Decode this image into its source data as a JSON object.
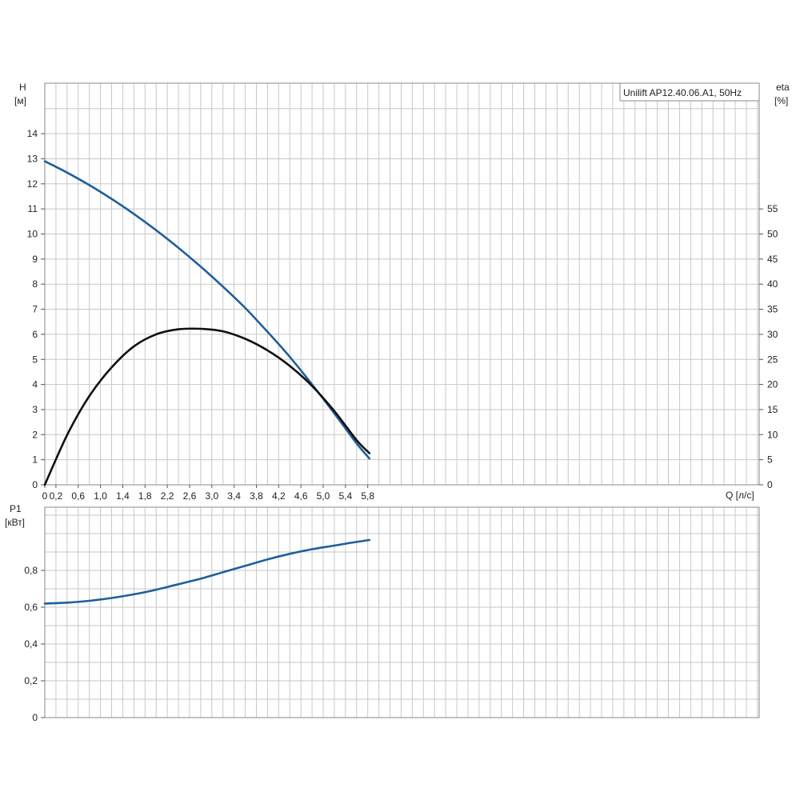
{
  "chart_data": [
    {
      "type": "line",
      "title": "Unilift AP12.40.06.A1, 50Hz",
      "xlabel": "Q [л/с]",
      "x_unit_label": "Q [л/с]",
      "ylabel": "H",
      "y_unit": "[м]",
      "y2label": "eta",
      "y2_unit": "[%]",
      "xlim": [
        0,
        6.4
      ],
      "ylim": [
        0,
        16
      ],
      "y2lim": [
        0,
        80
      ],
      "grid": true,
      "x_ticks": [
        "0",
        "0,2",
        "0,6",
        "1,0",
        "1,4",
        "1,8",
        "2,2",
        "2,6",
        "3,0",
        "3,4",
        "3,8",
        "4,2",
        "4,6",
        "5,0",
        "5,4",
        "5,8"
      ],
      "y_ticks": [
        "0",
        "1",
        "2",
        "3",
        "4",
        "5",
        "6",
        "7",
        "8",
        "9",
        "10",
        "11",
        "12",
        "13",
        "14"
      ],
      "y2_ticks": [
        "0",
        "5",
        "10",
        "15",
        "20",
        "25",
        "30",
        "35",
        "40",
        "45",
        "50",
        "55"
      ],
      "series": [
        {
          "axis": "left",
          "color": "#1f5f9a",
          "x": [
            0,
            0.4,
            0.8,
            1.2,
            1.6,
            2.0,
            2.4,
            2.8,
            3.2,
            3.6,
            4.0,
            4.4,
            4.8,
            5.2,
            5.6,
            5.83
          ],
          "values": [
            12.9,
            12.45,
            11.95,
            11.4,
            10.8,
            10.15,
            9.45,
            8.7,
            7.9,
            7.05,
            6.1,
            5.1,
            4.0,
            2.85,
            1.65,
            1.05
          ]
        },
        {
          "axis": "right",
          "color": "#111111",
          "x": [
            0,
            0.4,
            0.8,
            1.2,
            1.6,
            2.0,
            2.4,
            2.8,
            3.2,
            3.6,
            4.0,
            4.4,
            4.8,
            5.2,
            5.6,
            5.83
          ],
          "values": [
            0,
            9.9,
            17.7,
            23.4,
            27.6,
            30.0,
            31.0,
            31.1,
            30.6,
            29.1,
            26.8,
            23.7,
            19.7,
            14.7,
            8.9,
            6.3
          ]
        }
      ]
    },
    {
      "type": "line",
      "ylabel": "P1",
      "y_unit": "[кВт]",
      "xlim": [
        0,
        6.4
      ],
      "ylim": [
        0,
        1.0
      ],
      "grid": true,
      "y_ticks": [
        "0",
        "0,2",
        "0,4",
        "0,6",
        "0,8"
      ],
      "series": [
        {
          "axis": "left",
          "color": "#1f5f9a",
          "x": [
            0,
            0.4,
            0.8,
            1.2,
            1.6,
            2.0,
            2.4,
            2.8,
            3.2,
            3.6,
            4.0,
            4.4,
            4.8,
            5.2,
            5.6,
            5.83
          ],
          "values": [
            0.62,
            0.625,
            0.635,
            0.65,
            0.67,
            0.695,
            0.725,
            0.755,
            0.79,
            0.825,
            0.86,
            0.89,
            0.915,
            0.935,
            0.955,
            0.965
          ]
        }
      ]
    }
  ]
}
